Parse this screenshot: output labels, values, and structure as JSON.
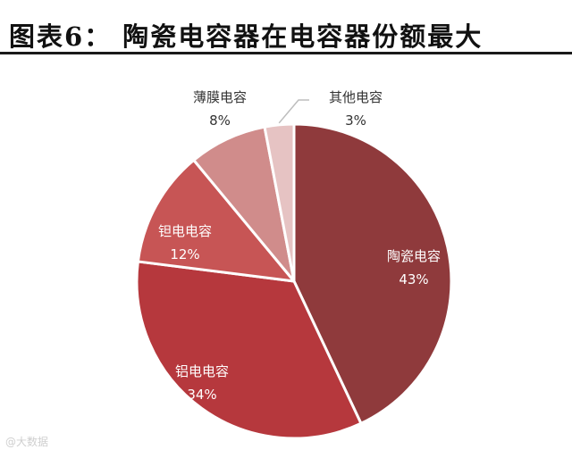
{
  "title": "图表6：  陶瓷电容器在电容器份额最大",
  "chart_data": {
    "type": "pie",
    "title": "图表6：  陶瓷电容器在电容器份额最大",
    "unit": "%",
    "slices": [
      {
        "label": "陶瓷电容",
        "value": 43,
        "value_label": "43%",
        "color": "#8f3a3c"
      },
      {
        "label": "铝电电容",
        "value": 34,
        "value_label": "34%",
        "color": "#b6383d"
      },
      {
        "label": "钽电电容",
        "value": 12,
        "value_label": "12%",
        "color": "#c75555"
      },
      {
        "label": "薄膜电容",
        "value": 8,
        "value_label": "8%",
        "color": "#d08c8b"
      },
      {
        "label": "其他电容",
        "value": 3,
        "value_label": "3%",
        "color": "#e6c3c3"
      }
    ],
    "label_colors": {
      "inside": "#ffffff",
      "outside": "#333333"
    }
  },
  "watermark": "@大数据"
}
